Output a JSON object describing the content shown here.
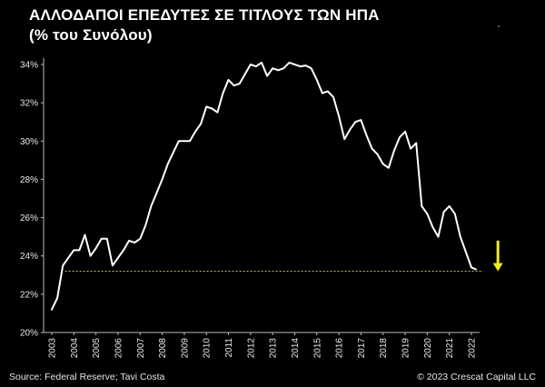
{
  "header": {
    "title_line1": "ΑΛΛΟΔΑΠΟΙ ΕΠΕΔΥΤΕΣ ΣΕ ΤΙΤΛΟΥΣ ΤΩΝ ΗΠΑ",
    "title_line2": "(% του Συνόλου)"
  },
  "footer": {
    "source": "Source: Federal Reserve; Tavi Costa",
    "copyright": "© 2023 Crescat Capital LLC"
  },
  "colors": {
    "background": "#000000",
    "line": "#ffffff",
    "reference_line": "#d8d24a",
    "arrow": "#f2ec22"
  },
  "chart_data": {
    "type": "line",
    "title": "ΑΛΛΟΔΑΠΟΙ ΕΠΕΔΥΤΕΣ ΣΕ ΤΙΤΛΟΥΣ ΤΩΝ ΗΠΑ",
    "subtitle": "(% του Συνόλου)",
    "xlabel": "",
    "ylabel": "",
    "xlim": [
      2003,
      2022.3
    ],
    "ylim": [
      20,
      34.6
    ],
    "grid": false,
    "x_ticks": [
      "2003",
      "2004",
      "2005",
      "2006",
      "2007",
      "2008",
      "2009",
      "2010",
      "2011",
      "2012",
      "2013",
      "2014",
      "2015",
      "2016",
      "2017",
      "2018",
      "2019",
      "2020",
      "2021",
      "2022"
    ],
    "y_ticks": [
      "20%",
      "22%",
      "24%",
      "26%",
      "28%",
      "30%",
      "32%",
      "34%"
    ],
    "series": [
      {
        "x": [
          2003.0,
          2003.25,
          2003.5,
          2003.75,
          2004.0,
          2004.25,
          2004.5,
          2004.75,
          2005.0,
          2005.25,
          2005.5,
          2005.75,
          2006.0,
          2006.25,
          2006.5,
          2006.75,
          2007.0,
          2007.25,
          2007.5,
          2007.75,
          2008.0,
          2008.25,
          2008.5,
          2008.75,
          2009.0,
          2009.25,
          2009.5,
          2009.75,
          2010.0,
          2010.25,
          2010.5,
          2010.75,
          2011.0,
          2011.25,
          2011.5,
          2011.75,
          2012.0,
          2012.25,
          2012.5,
          2012.75,
          2013.0,
          2013.25,
          2013.5,
          2013.75,
          2014.0,
          2014.25,
          2014.5,
          2014.75,
          2015.0,
          2015.25,
          2015.5,
          2015.75,
          2016.0,
          2016.25,
          2016.5,
          2016.75,
          2017.0,
          2017.25,
          2017.5,
          2017.75,
          2018.0,
          2018.25,
          2018.5,
          2018.75,
          2019.0,
          2019.25,
          2019.5,
          2019.75,
          2020.0,
          2020.25,
          2020.5,
          2020.75,
          2021.0,
          2021.25,
          2021.5,
          2021.75,
          2022.0,
          2022.2
        ],
        "values": [
          21.2,
          21.8,
          23.5,
          23.9,
          24.3,
          24.3,
          25.1,
          24.0,
          24.4,
          24.9,
          24.9,
          23.5,
          23.9,
          24.3,
          24.8,
          24.7,
          24.9,
          25.6,
          26.6,
          27.3,
          28.0,
          28.8,
          29.4,
          30.0,
          30.0,
          30.0,
          30.5,
          30.9,
          31.8,
          31.7,
          31.5,
          32.5,
          33.2,
          32.9,
          33.0,
          33.5,
          34.0,
          33.9,
          34.1,
          33.4,
          33.8,
          33.7,
          33.8,
          34.1,
          34.0,
          33.9,
          33.95,
          33.8,
          33.2,
          32.5,
          32.6,
          32.3,
          31.3,
          30.1,
          30.6,
          31.0,
          31.1,
          30.3,
          29.6,
          29.3,
          28.8,
          28.6,
          29.5,
          30.2,
          30.5,
          29.6,
          29.9,
          26.6,
          26.2,
          25.5,
          25.0,
          26.3,
          26.6,
          26.2,
          25.0,
          24.2,
          23.4,
          23.3
        ]
      }
    ],
    "reference_line": {
      "y": 23.2,
      "x_start": 2003.6,
      "style": "dotted"
    },
    "annotations": [
      {
        "type": "arrow",
        "direction": "down",
        "color": "#f2ec22",
        "x": 2023.2,
        "y_from": 24.8,
        "y_to": 23.2
      }
    ]
  }
}
